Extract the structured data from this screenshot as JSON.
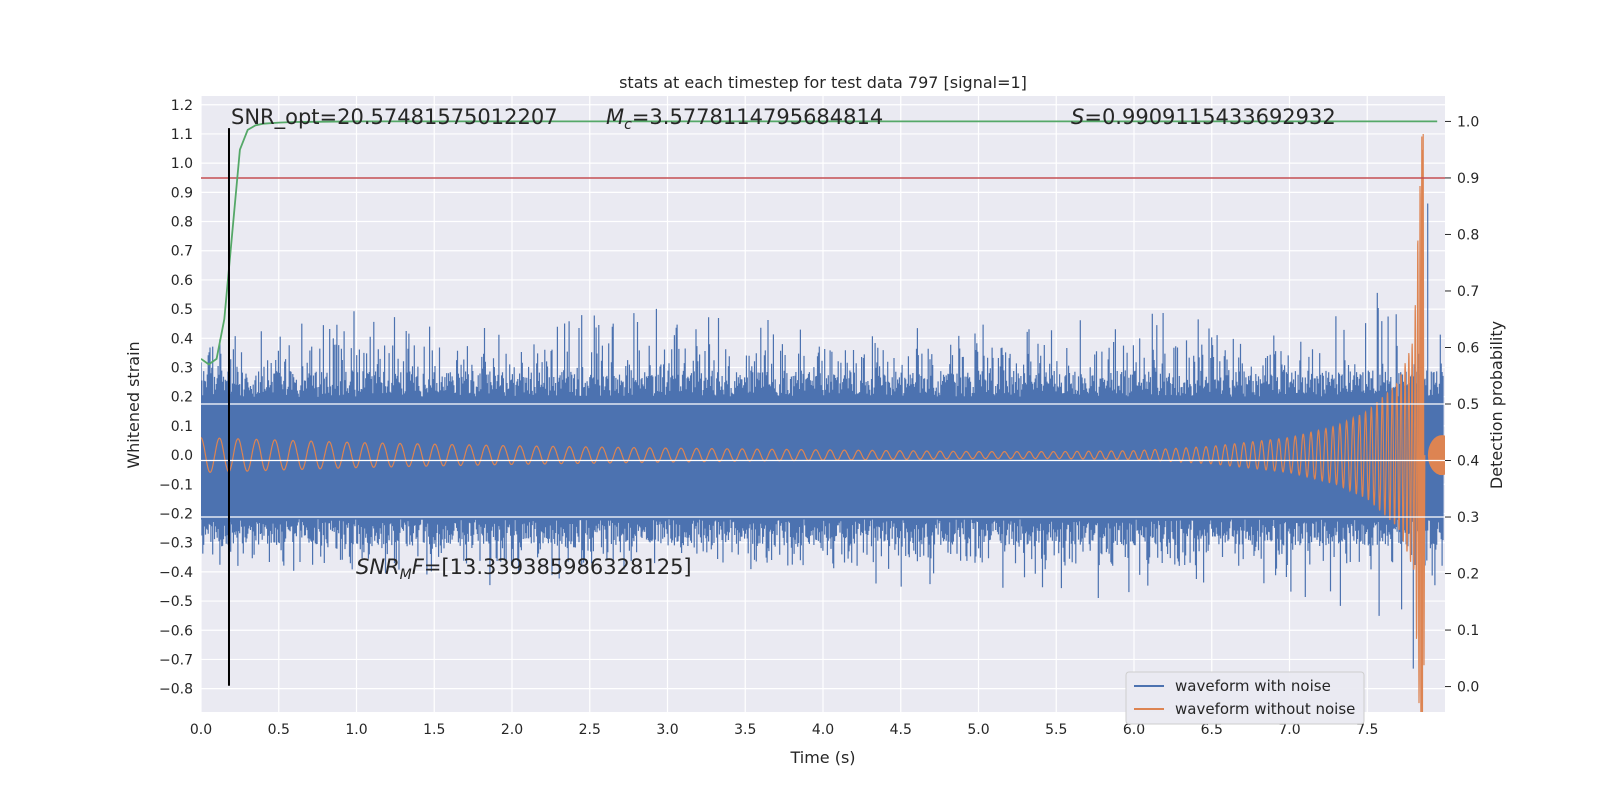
{
  "chart_data": {
    "type": "line",
    "title": "stats at each timestep for test data 797 [signal=1]",
    "xlabel": "Time (s)",
    "ylabel": "Whitened strain",
    "y2label": "Detection probability",
    "xlim": [
      0.0,
      8.0
    ],
    "ylim": [
      -0.88,
      1.23
    ],
    "y2lim": [
      -0.045,
      1.045
    ],
    "x_ticks": [
      "0.0",
      "0.5",
      "1.0",
      "1.5",
      "2.0",
      "2.5",
      "3.0",
      "3.5",
      "4.0",
      "4.5",
      "5.0",
      "5.5",
      "6.0",
      "6.5",
      "7.0",
      "7.5"
    ],
    "y_ticks": [
      "1.2",
      "1.1",
      "1.0",
      "0.9",
      "0.8",
      "0.7",
      "0.6",
      "0.5",
      "0.4",
      "0.3",
      "0.2",
      "0.1",
      "0.0",
      "−0.1",
      "−0.2",
      "−0.3",
      "−0.4",
      "−0.5",
      "−0.6",
      "−0.7",
      "−0.8"
    ],
    "y2_ticks": [
      "1.0",
      "0.9",
      "0.8",
      "0.7",
      "0.6",
      "0.5",
      "0.4",
      "0.3",
      "0.2",
      "0.1",
      "0.0"
    ],
    "grid": true,
    "legend_position": "bottom-right",
    "colors": {
      "noisy": "#4c72b0",
      "clean": "#dd8452",
      "probability": "#55a868",
      "threshold": "#c44e52",
      "marker": "#000000",
      "background": "#eaeaf2"
    },
    "series": [
      {
        "name": "waveform with noise",
        "axis": "left",
        "envelope_note": "dense noise; typical band about ±0.28, spikes to about ±0.5",
        "x": [
          0.0,
          1.0,
          2.0,
          3.0,
          4.0,
          5.0,
          6.0,
          7.0,
          7.5,
          7.85,
          8.0
        ],
        "upper": [
          0.4,
          0.5,
          0.45,
          0.55,
          0.45,
          0.45,
          0.5,
          0.45,
          0.52,
          1.1,
          0.3
        ],
        "lower": [
          -0.4,
          -0.42,
          -0.45,
          -0.4,
          -0.45,
          -0.47,
          -0.5,
          -0.48,
          -0.55,
          -0.78,
          -0.35
        ]
      },
      {
        "name": "waveform without noise",
        "axis": "left",
        "envelope_note": "chirp with slowly decaying amplitude then rapid growth to merger near 7.85 s",
        "x": [
          0.0,
          1.0,
          2.0,
          3.0,
          4.0,
          5.0,
          5.5,
          6.0,
          6.5,
          7.0,
          7.3,
          7.5,
          7.7,
          7.8,
          7.85
        ],
        "amplitude": [
          0.06,
          0.043,
          0.032,
          0.024,
          0.018,
          0.012,
          0.012,
          0.015,
          0.03,
          0.06,
          0.1,
          0.15,
          0.25,
          0.4,
          1.1
        ]
      },
      {
        "name": "detection probability",
        "axis": "right",
        "x": [
          0.0,
          0.05,
          0.1,
          0.15,
          0.2,
          0.25,
          0.3,
          0.35,
          0.4,
          0.5,
          0.6,
          0.8,
          1.0,
          1.5,
          2.0,
          3.0,
          4.0,
          5.0,
          6.0,
          7.0,
          7.5,
          7.8,
          7.95
        ],
        "values": [
          0.58,
          0.57,
          0.58,
          0.65,
          0.8,
          0.95,
          0.985,
          0.993,
          0.996,
          0.998,
          0.999,
          0.9995,
          1.0,
          1.0,
          1.0,
          1.0,
          1.0,
          1.0,
          1.0,
          1.0,
          1.0,
          1.0,
          1.0
        ]
      }
    ],
    "threshold": {
      "axis": "right",
      "value": 0.9
    },
    "vertical_marker": {
      "x": 0.18,
      "y_from": -0.79,
      "y_to": 1.12
    },
    "annotations": [
      {
        "id": "snr_opt",
        "text": "SNR_opt=20.57481575012207"
      },
      {
        "id": "mc",
        "prefix": "M",
        "sub": "c",
        "text": "=3.5778114795684814"
      },
      {
        "id": "s",
        "prefix": "S",
        "text": "=0.9909115433692932"
      },
      {
        "id": "snr_mf",
        "prefix": "SNR",
        "sub": "M",
        "suffix": "F",
        "text": "=[13.339385986328125]"
      }
    ],
    "legend": [
      {
        "label": "waveform with noise",
        "color": "#4c72b0"
      },
      {
        "label": "waveform without noise",
        "color": "#dd8452"
      }
    ]
  }
}
